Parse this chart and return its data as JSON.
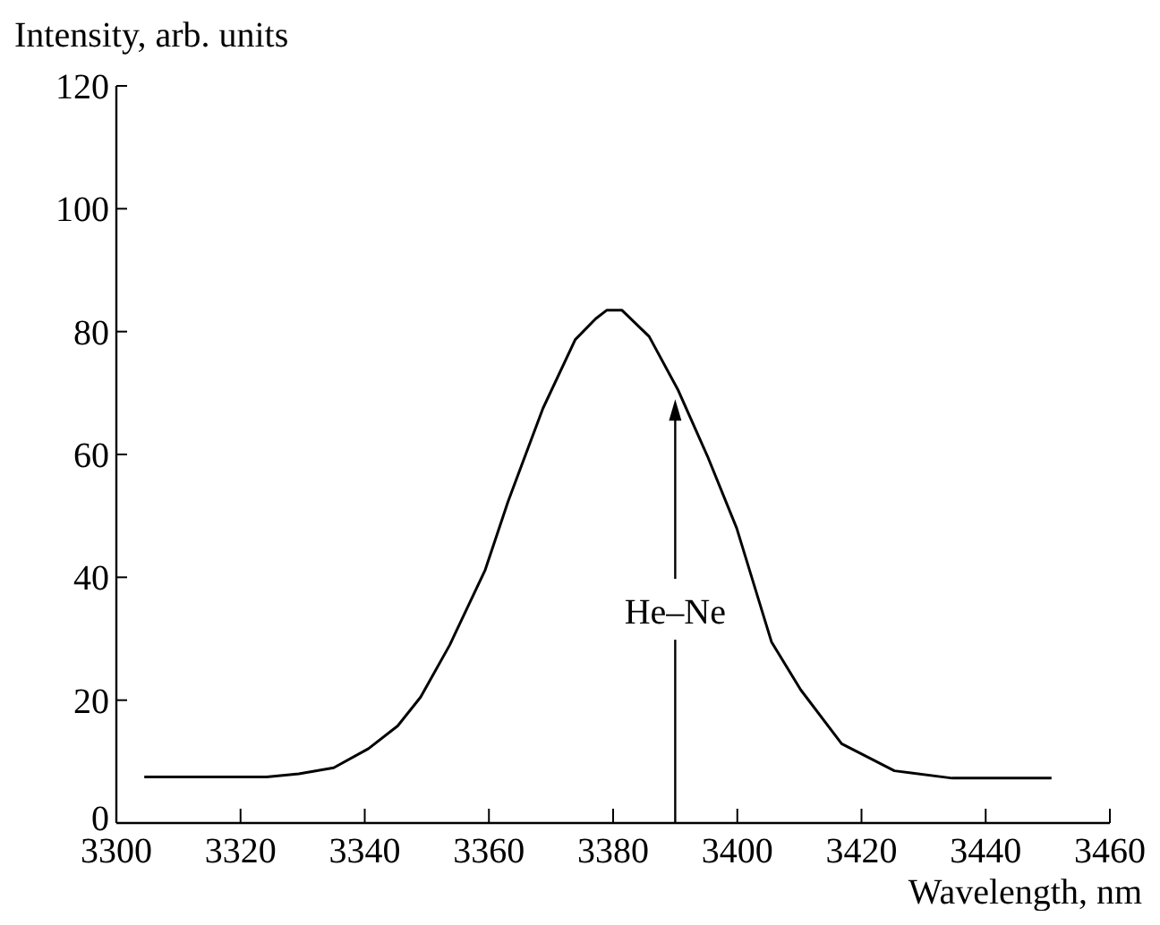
{
  "chart_data": {
    "type": "line",
    "xlabel": "Wavelength, nm",
    "ylabel": "Intensity, arb. units",
    "x": [
      3304.5,
      3324.2,
      3329.4,
      3335,
      3340.6,
      3345.3,
      3349,
      3353.7,
      3359.4,
      3363.1,
      3368.7,
      3373.9,
      3377.2,
      3379,
      3381.4,
      3385.8,
      3390.5,
      3395.2,
      3399.9,
      3405.5,
      3410.2,
      3416.8,
      3425.3,
      3434.6,
      3450.6
    ],
    "series": [
      {
        "color": "#000000",
        "values": [
          7.5,
          7.5,
          8,
          9,
          12.1,
          15.8,
          20.5,
          29,
          41.2,
          52.4,
          67.5,
          78.7,
          82.1,
          83.5,
          83.5,
          79.2,
          70.4,
          59.7,
          48,
          29.5,
          21.7,
          12.9,
          8.5,
          7.3,
          7.3
        ]
      }
    ],
    "xlim": [
      3300,
      3460
    ],
    "xticks": [
      3300,
      3320,
      3340,
      3360,
      3380,
      3400,
      3420,
      3440,
      3460
    ],
    "ylim": [
      0,
      120
    ],
    "yticks": [
      0,
      20,
      40,
      60,
      80,
      100,
      120
    ],
    "annotations": [
      {
        "text": "He–Ne",
        "x": 3390,
        "y": 69
      }
    ],
    "grid": false,
    "marker": "none",
    "line_style": "solid"
  }
}
